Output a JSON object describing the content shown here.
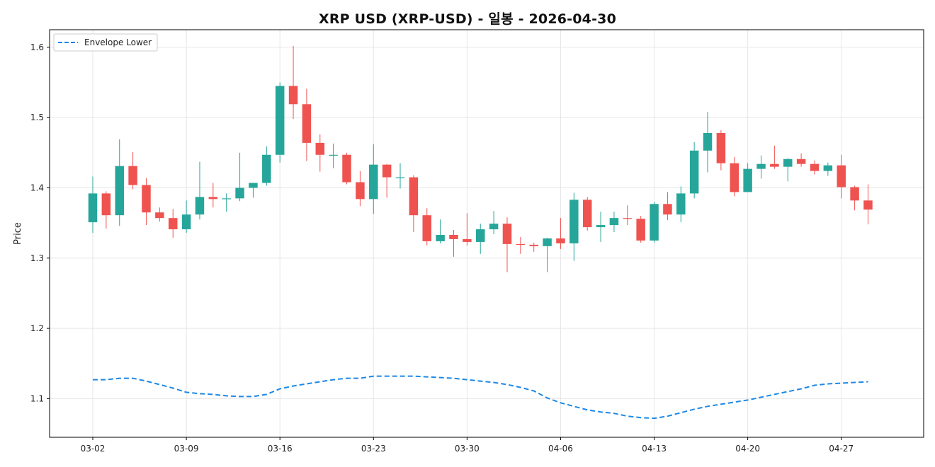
{
  "chart_data": {
    "type": "candlestick",
    "title": "XRP USD (XRP-USD) - 일봉 - 2026-04-30",
    "xlabel": "",
    "ylabel": "Price",
    "ylim": [
      1.045,
      1.625
    ],
    "y_ticks": [
      "1.1",
      "1.2",
      "1.3",
      "1.4",
      "1.5",
      "1.6"
    ],
    "x_ticks": [
      "03-02",
      "03-09",
      "03-16",
      "03-23",
      "03-30",
      "04-06",
      "04-13",
      "04-20",
      "04-27"
    ],
    "grid": true,
    "legend_position": "top-left",
    "colors": {
      "up": "#26a69a",
      "down": "#ef5350",
      "envelope": "#1e88e5"
    },
    "dates": [
      "03-02",
      "03-03",
      "03-04",
      "03-05",
      "03-06",
      "03-07",
      "03-08",
      "03-09",
      "03-10",
      "03-11",
      "03-12",
      "03-13",
      "03-14",
      "03-15",
      "03-16",
      "03-17",
      "03-18",
      "03-19",
      "03-20",
      "03-21",
      "03-22",
      "03-23",
      "03-24",
      "03-25",
      "03-26",
      "03-27",
      "03-28",
      "03-29",
      "03-30",
      "03-31",
      "04-01",
      "04-02",
      "04-03",
      "04-04",
      "04-05",
      "04-06",
      "04-07",
      "04-08",
      "04-09",
      "04-10",
      "04-11",
      "04-12",
      "04-13",
      "04-14",
      "04-15",
      "04-16",
      "04-17",
      "04-18",
      "04-19",
      "04-20",
      "04-21",
      "04-22",
      "04-23",
      "04-24",
      "04-25",
      "04-26",
      "04-27",
      "04-28",
      "04-29"
    ],
    "open": [
      1.351,
      1.392,
      1.361,
      1.431,
      1.404,
      1.365,
      1.357,
      1.341,
      1.362,
      1.387,
      1.384,
      1.385,
      1.4,
      1.407,
      1.447,
      1.545,
      1.519,
      1.464,
      1.447,
      1.447,
      1.408,
      1.384,
      1.433,
      1.415,
      1.415,
      1.361,
      1.324,
      1.333,
      1.327,
      1.323,
      1.341,
      1.349,
      1.32,
      1.319,
      1.317,
      1.328,
      1.321,
      1.383,
      1.344,
      1.347,
      1.357,
      1.356,
      1.325,
      1.377,
      1.362,
      1.392,
      1.453,
      1.478,
      1.435,
      1.394,
      1.427,
      1.434,
      1.43,
      1.441,
      1.434,
      1.424,
      1.432,
      1.401,
      1.382
    ],
    "high": [
      1.416,
      1.395,
      1.469,
      1.451,
      1.414,
      1.372,
      1.37,
      1.382,
      1.437,
      1.407,
      1.392,
      1.45,
      1.403,
      1.459,
      1.55,
      1.602,
      1.541,
      1.476,
      1.463,
      1.45,
      1.424,
      1.462,
      1.434,
      1.435,
      1.418,
      1.371,
      1.355,
      1.34,
      1.364,
      1.349,
      1.367,
      1.358,
      1.33,
      1.322,
      1.329,
      1.357,
      1.393,
      1.387,
      1.366,
      1.366,
      1.375,
      1.36,
      1.38,
      1.394,
      1.402,
      1.465,
      1.508,
      1.482,
      1.444,
      1.435,
      1.446,
      1.46,
      1.442,
      1.449,
      1.439,
      1.436,
      1.447,
      1.403,
      1.405
    ],
    "low": [
      1.336,
      1.342,
      1.346,
      1.398,
      1.347,
      1.352,
      1.329,
      1.336,
      1.355,
      1.372,
      1.366,
      1.381,
      1.386,
      1.403,
      1.436,
      1.498,
      1.438,
      1.423,
      1.428,
      1.405,
      1.374,
      1.363,
      1.386,
      1.399,
      1.337,
      1.318,
      1.321,
      1.302,
      1.318,
      1.306,
      1.334,
      1.28,
      1.306,
      1.309,
      1.28,
      1.313,
      1.296,
      1.339,
      1.323,
      1.337,
      1.347,
      1.322,
      1.322,
      1.354,
      1.351,
      1.385,
      1.422,
      1.425,
      1.388,
      1.394,
      1.413,
      1.427,
      1.409,
      1.43,
      1.419,
      1.417,
      1.385,
      1.368,
      1.348
    ],
    "close": [
      1.392,
      1.361,
      1.431,
      1.404,
      1.365,
      1.357,
      1.341,
      1.362,
      1.387,
      1.384,
      1.385,
      1.4,
      1.407,
      1.447,
      1.545,
      1.519,
      1.464,
      1.447,
      1.447,
      1.408,
      1.384,
      1.433,
      1.415,
      1.415,
      1.361,
      1.324,
      1.333,
      1.327,
      1.323,
      1.341,
      1.349,
      1.32,
      1.319,
      1.317,
      1.328,
      1.321,
      1.383,
      1.344,
      1.347,
      1.357,
      1.356,
      1.325,
      1.377,
      1.362,
      1.392,
      1.453,
      1.478,
      1.435,
      1.394,
      1.427,
      1.434,
      1.43,
      1.441,
      1.434,
      1.424,
      1.432,
      1.401,
      1.382,
      1.369
    ],
    "series": [
      {
        "name": "Envelope Lower",
        "style": "dashed",
        "color": "#1e88e5",
        "values": [
          1.127,
          1.127,
          1.129,
          1.129,
          1.125,
          1.12,
          1.115,
          1.109,
          1.107,
          1.106,
          1.104,
          1.103,
          1.103,
          1.106,
          1.114,
          1.118,
          1.121,
          1.124,
          1.127,
          1.129,
          1.129,
          1.132,
          1.132,
          1.132,
          1.132,
          1.131,
          1.13,
          1.129,
          1.127,
          1.125,
          1.123,
          1.12,
          1.116,
          1.111,
          1.101,
          1.094,
          1.089,
          1.084,
          1.081,
          1.079,
          1.075,
          1.073,
          1.072,
          1.075,
          1.08,
          1.085,
          1.089,
          1.092,
          1.095,
          1.098,
          1.102,
          1.106,
          1.11,
          1.114,
          1.119,
          1.121,
          1.122,
          1.123,
          1.124
        ]
      }
    ]
  }
}
